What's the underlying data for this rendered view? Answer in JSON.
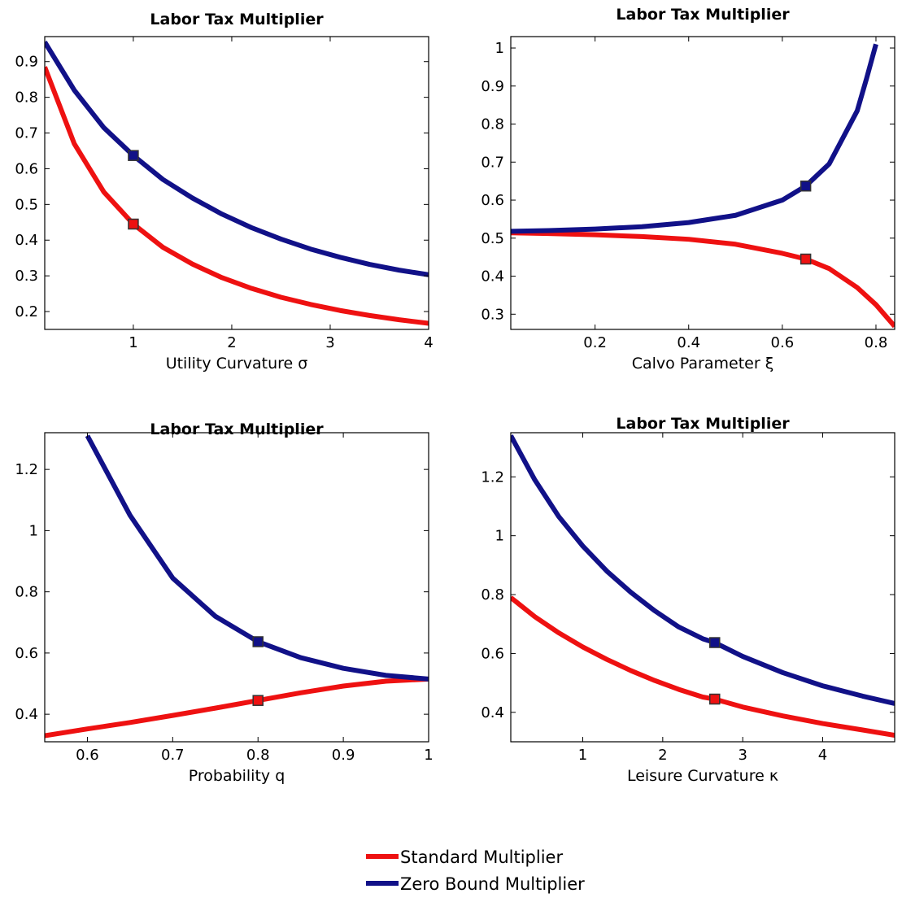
{
  "colors": {
    "standard": "#ee1111",
    "zero_bound": "#111188",
    "axes": "#000000"
  },
  "legend": {
    "position": "bottom-center",
    "entries": [
      "Standard Multiplier",
      "Zero Bound Multiplier"
    ]
  },
  "chart_data": [
    {
      "type": "line",
      "title": "Labor Tax Multiplier",
      "xlabel": "Utility Curvature σ",
      "ylabel": "",
      "xlim": [
        0.1,
        4
      ],
      "ylim": [
        0.15,
        0.97
      ],
      "xticks": [
        1,
        2,
        3,
        4
      ],
      "xtick_labels": [
        "1",
        "2",
        "3",
        "4"
      ],
      "yticks": [
        0.2,
        0.3,
        0.4,
        0.5,
        0.6,
        0.7,
        0.8,
        0.9
      ],
      "ytick_labels": [
        "0.2",
        "0.3",
        "0.4",
        "0.5",
        "0.6",
        "0.7",
        "0.8",
        "0.9"
      ],
      "marker_x": 1,
      "series": [
        {
          "name": "Standard Multiplier",
          "color": "#ee1111",
          "x": [
            0.1,
            0.4,
            0.7,
            1.0,
            1.3,
            1.6,
            1.9,
            2.2,
            2.5,
            2.8,
            3.1,
            3.4,
            3.7,
            4.0
          ],
          "y": [
            0.885,
            0.67,
            0.535,
            0.445,
            0.38,
            0.333,
            0.295,
            0.265,
            0.24,
            0.22,
            0.203,
            0.189,
            0.177,
            0.167
          ],
          "marker": [
            1.0,
            0.445
          ]
        },
        {
          "name": "Zero Bound Multiplier",
          "color": "#111188",
          "x": [
            0.1,
            0.4,
            0.7,
            1.0,
            1.3,
            1.6,
            1.9,
            2.2,
            2.5,
            2.8,
            3.1,
            3.4,
            3.7,
            4.0
          ],
          "y": [
            0.955,
            0.82,
            0.715,
            0.637,
            0.57,
            0.518,
            0.473,
            0.435,
            0.403,
            0.375,
            0.352,
            0.332,
            0.316,
            0.303
          ],
          "marker": [
            1.0,
            0.637
          ]
        }
      ]
    },
    {
      "type": "line",
      "title": "Labor Tax Multiplier",
      "xlabel": "Calvo Parameter ξ",
      "ylabel": "",
      "xlim": [
        0.02,
        0.84
      ],
      "ylim": [
        0.26,
        1.03
      ],
      "xticks": [
        0.2,
        0.4,
        0.6,
        0.8
      ],
      "xtick_labels": [
        "0.2",
        "0.4",
        "0.6",
        "0.8"
      ],
      "yticks": [
        0.3,
        0.4,
        0.5,
        0.6,
        0.7,
        0.8,
        0.9,
        1.0
      ],
      "ytick_labels": [
        "0.3",
        "0.4",
        "0.5",
        "0.6",
        "0.7",
        "0.8",
        "0.9",
        "1"
      ],
      "series": [
        {
          "name": "Standard Multiplier",
          "color": "#ee1111",
          "x": [
            0.02,
            0.1,
            0.2,
            0.3,
            0.4,
            0.5,
            0.6,
            0.65,
            0.7,
            0.76,
            0.8,
            0.84
          ],
          "y": [
            0.514,
            0.512,
            0.509,
            0.504,
            0.497,
            0.484,
            0.46,
            0.445,
            0.42,
            0.37,
            0.325,
            0.268
          ],
          "marker": [
            0.65,
            0.445
          ]
        },
        {
          "name": "Zero Bound Multiplier",
          "color": "#111188",
          "x": [
            0.02,
            0.1,
            0.2,
            0.3,
            0.4,
            0.5,
            0.6,
            0.65,
            0.7,
            0.76,
            0.78,
            0.8
          ],
          "y": [
            0.518,
            0.52,
            0.524,
            0.53,
            0.541,
            0.56,
            0.6,
            0.637,
            0.695,
            0.835,
            0.92,
            1.01
          ],
          "marker": [
            0.65,
            0.637
          ]
        }
      ]
    },
    {
      "type": "line",
      "title": "Labor Tax Multiplier",
      "xlabel": "Probability q",
      "ylabel": "",
      "xlim": [
        0.55,
        1
      ],
      "ylim": [
        0.31,
        1.32
      ],
      "xticks": [
        0.6,
        0.7,
        0.8,
        0.9,
        1.0
      ],
      "xtick_labels": [
        "0.6",
        "0.7",
        "0.8",
        "0.9",
        "1"
      ],
      "yticks": [
        0.4,
        0.6,
        0.8,
        1.0,
        1.2
      ],
      "ytick_labels": [
        "0.4",
        "0.6",
        "0.8",
        "1",
        "1.2"
      ],
      "series": [
        {
          "name": "Standard Multiplier",
          "color": "#ee1111",
          "x": [
            0.55,
            0.6,
            0.65,
            0.7,
            0.75,
            0.8,
            0.85,
            0.9,
            0.95,
            1.0
          ],
          "y": [
            0.33,
            0.352,
            0.373,
            0.396,
            0.42,
            0.445,
            0.47,
            0.492,
            0.508,
            0.515
          ],
          "marker": [
            0.8,
            0.445
          ]
        },
        {
          "name": "Zero Bound Multiplier",
          "color": "#111188",
          "x": [
            0.6,
            0.65,
            0.7,
            0.75,
            0.8,
            0.85,
            0.9,
            0.95,
            1.0
          ],
          "y": [
            1.31,
            1.05,
            0.845,
            0.72,
            0.637,
            0.585,
            0.55,
            0.527,
            0.515
          ],
          "marker": [
            0.8,
            0.637
          ]
        }
      ]
    },
    {
      "type": "line",
      "title": "Labor Tax Multiplier",
      "xlabel": "Leisure Curvature κ",
      "ylabel": "",
      "xlim": [
        0.1,
        4.9
      ],
      "ylim": [
        0.3,
        1.35
      ],
      "xticks": [
        1,
        2,
        3,
        4
      ],
      "xtick_labels": [
        "1",
        "2",
        "3",
        "4"
      ],
      "yticks": [
        0.4,
        0.6,
        0.8,
        1.0,
        1.2
      ],
      "ytick_labels": [
        "0.4",
        "0.6",
        "0.8",
        "1",
        "1.2"
      ],
      "series": [
        {
          "name": "Standard Multiplier",
          "color": "#ee1111",
          "x": [
            0.1,
            0.4,
            0.7,
            1.0,
            1.3,
            1.6,
            1.9,
            2.2,
            2.5,
            2.65,
            3.0,
            3.5,
            4.0,
            4.5,
            4.9
          ],
          "y": [
            0.79,
            0.725,
            0.67,
            0.622,
            0.58,
            0.542,
            0.508,
            0.478,
            0.452,
            0.445,
            0.418,
            0.388,
            0.362,
            0.34,
            0.322
          ],
          "marker": [
            2.65,
            0.445
          ]
        },
        {
          "name": "Zero Bound Multiplier",
          "color": "#111188",
          "x": [
            0.1,
            0.4,
            0.7,
            1.0,
            1.3,
            1.6,
            1.9,
            2.2,
            2.5,
            2.65,
            3.0,
            3.5,
            4.0,
            4.5,
            4.9
          ],
          "y": [
            1.34,
            1.19,
            1.065,
            0.965,
            0.88,
            0.808,
            0.745,
            0.69,
            0.65,
            0.637,
            0.59,
            0.535,
            0.49,
            0.455,
            0.43
          ],
          "marker": [
            2.65,
            0.637
          ]
        }
      ]
    }
  ]
}
